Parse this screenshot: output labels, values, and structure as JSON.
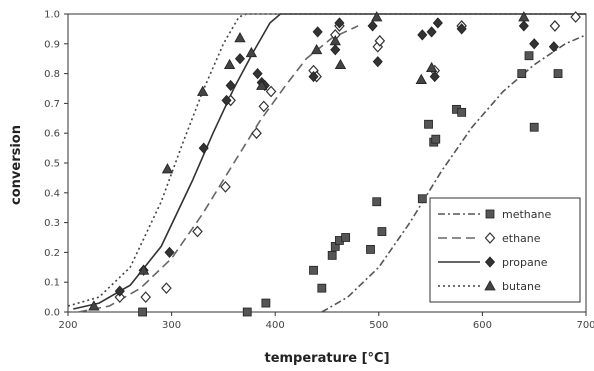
{
  "chart_data": {
    "type": "scatter",
    "title": "",
    "xlabel": "temperature [°C]",
    "ylabel": "conversion",
    "xlim": [
      200,
      700
    ],
    "ylim": [
      0,
      1
    ],
    "x_ticks": [
      200,
      300,
      400,
      500,
      600,
      700
    ],
    "x_tick_labels": [
      "200",
      "300",
      "400",
      "500",
      "600",
      "700"
    ],
    "y_ticks": [
      0,
      0.1,
      0.2,
      0.3,
      0.4,
      0.5,
      0.6,
      0.7,
      0.8,
      0.9,
      1.0
    ],
    "y_tick_labels": [
      "0.0",
      "0.1",
      "0.2",
      "0.3",
      "0.4",
      "0.5",
      "0.6",
      "0.7",
      "0.8",
      "0.9",
      "1.0"
    ],
    "grid": false,
    "legend": "lower-right",
    "series": [
      {
        "name": "methane",
        "marker": "square",
        "line": "dashdot",
        "color": "#555555",
        "points": [
          [
            272,
            0.0
          ],
          [
            373,
            0.0
          ],
          [
            391,
            0.03
          ],
          [
            437,
            0.14
          ],
          [
            445,
            0.08
          ],
          [
            455,
            0.19
          ],
          [
            458,
            0.22
          ],
          [
            462,
            0.24
          ],
          [
            468,
            0.25
          ],
          [
            492,
            0.21
          ],
          [
            498,
            0.37
          ],
          [
            503,
            0.27
          ],
          [
            542,
            0.38
          ],
          [
            548,
            0.63
          ],
          [
            553,
            0.57
          ],
          [
            555,
            0.58
          ],
          [
            575,
            0.68
          ],
          [
            580,
            0.67
          ],
          [
            638,
            0.8
          ],
          [
            645,
            0.86
          ],
          [
            650,
            0.62
          ],
          [
            673,
            0.8
          ]
        ],
        "curve": [
          [
            445,
            0.0
          ],
          [
            470,
            0.05
          ],
          [
            500,
            0.15
          ],
          [
            530,
            0.3
          ],
          [
            560,
            0.47
          ],
          [
            590,
            0.62
          ],
          [
            620,
            0.74
          ],
          [
            650,
            0.83
          ],
          [
            680,
            0.9
          ],
          [
            700,
            0.93
          ]
        ]
      },
      {
        "name": "ethane",
        "marker": "diamond-open",
        "line": "longdash",
        "color": "#666666",
        "points": [
          [
            250,
            0.05
          ],
          [
            275,
            0.05
          ],
          [
            295,
            0.08
          ],
          [
            325,
            0.27
          ],
          [
            352,
            0.42
          ],
          [
            357,
            0.71
          ],
          [
            382,
            0.6
          ],
          [
            389,
            0.69
          ],
          [
            396,
            0.74
          ],
          [
            437,
            0.81
          ],
          [
            440,
            0.79
          ],
          [
            458,
            0.93
          ],
          [
            462,
            0.96
          ],
          [
            499,
            0.89
          ],
          [
            501,
            0.91
          ],
          [
            554,
            0.81
          ],
          [
            580,
            0.96
          ],
          [
            670,
            0.96
          ],
          [
            690,
            0.99
          ]
        ],
        "curve": [
          [
            210,
            0.0
          ],
          [
            240,
            0.02
          ],
          [
            270,
            0.08
          ],
          [
            300,
            0.18
          ],
          [
            330,
            0.33
          ],
          [
            360,
            0.5
          ],
          [
            385,
            0.64
          ],
          [
            410,
            0.76
          ],
          [
            430,
            0.85
          ],
          [
            455,
            0.92
          ],
          [
            480,
            0.96
          ]
        ]
      },
      {
        "name": "propane",
        "marker": "diamond-filled",
        "line": "solid",
        "color": "#333333",
        "points": [
          [
            250,
            0.07
          ],
          [
            273,
            0.14
          ],
          [
            298,
            0.2
          ],
          [
            331,
            0.55
          ],
          [
            353,
            0.71
          ],
          [
            357,
            0.76
          ],
          [
            366,
            0.85
          ],
          [
            383,
            0.8
          ],
          [
            387,
            0.77
          ],
          [
            390,
            0.76
          ],
          [
            437,
            0.79
          ],
          [
            441,
            0.94
          ],
          [
            458,
            0.88
          ],
          [
            462,
            0.97
          ],
          [
            494,
            0.96
          ],
          [
            499,
            0.84
          ],
          [
            542,
            0.93
          ],
          [
            551,
            0.94
          ],
          [
            554,
            0.79
          ],
          [
            557,
            0.97
          ],
          [
            580,
            0.95
          ],
          [
            640,
            0.96
          ],
          [
            650,
            0.9
          ],
          [
            669,
            0.89
          ]
        ],
        "curve": [
          [
            205,
            0.01
          ],
          [
            230,
            0.03
          ],
          [
            260,
            0.09
          ],
          [
            290,
            0.22
          ],
          [
            320,
            0.44
          ],
          [
            340,
            0.6
          ],
          [
            360,
            0.75
          ],
          [
            380,
            0.88
          ],
          [
            395,
            0.97
          ],
          [
            405,
            1.0
          ],
          [
            700,
            1.0
          ]
        ]
      },
      {
        "name": "butane",
        "marker": "triangle",
        "line": "dotted",
        "color": "#444444",
        "points": [
          [
            225,
            0.02
          ],
          [
            273,
            0.14
          ],
          [
            296,
            0.48
          ],
          [
            330,
            0.74
          ],
          [
            356,
            0.83
          ],
          [
            366,
            0.92
          ],
          [
            377,
            0.87
          ],
          [
            387,
            0.76
          ],
          [
            440,
            0.88
          ],
          [
            458,
            0.91
          ],
          [
            463,
            0.83
          ],
          [
            498,
            0.99
          ],
          [
            541,
            0.78
          ],
          [
            551,
            0.82
          ],
          [
            640,
            0.99
          ]
        ],
        "curve": [
          [
            200,
            0.02
          ],
          [
            230,
            0.05
          ],
          [
            260,
            0.15
          ],
          [
            290,
            0.37
          ],
          [
            310,
            0.56
          ],
          [
            330,
            0.74
          ],
          [
            350,
            0.9
          ],
          [
            365,
            0.99
          ],
          [
            372,
            1.0
          ],
          [
            700,
            1.0
          ]
        ]
      }
    ]
  }
}
